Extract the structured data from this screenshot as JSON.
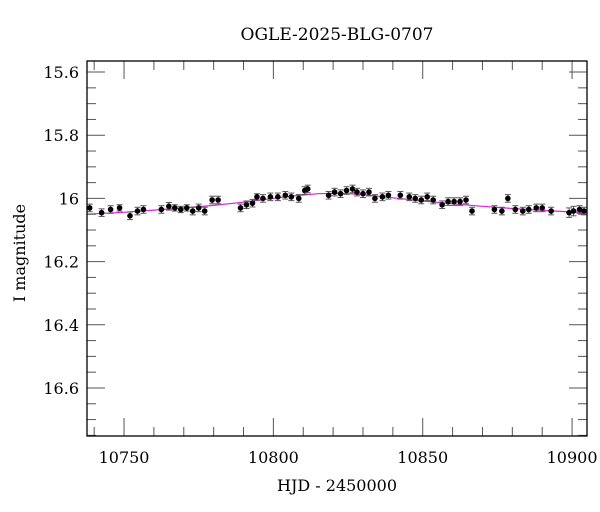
{
  "chart_data": {
    "type": "scatter",
    "title": "OGLE-2025-BLG-0707",
    "xlabel": "HJD - 2450000",
    "ylabel": "I magnitude",
    "xlim": [
      10737.6,
      10905.0
    ],
    "ylim": [
      15.565,
      16.752
    ],
    "y_inverted": true,
    "grid": false,
    "legend": null,
    "x_major_ticks": [
      10750,
      10800,
      10850,
      10900
    ],
    "x_tick_labels": [
      "10750",
      "10800",
      "10850",
      "10900"
    ],
    "x_minor_step": 10,
    "y_major_ticks": [
      15.6,
      15.8,
      16.0,
      16.2,
      16.4,
      16.6
    ],
    "y_tick_labels": [
      "15.6",
      "15.8",
      "16",
      "16.2",
      "16.4",
      "16.6"
    ],
    "y_minor_step": 0.05,
    "colors": {
      "points": "#000000",
      "errorbars": "#555555",
      "model": "#e020e0",
      "frame": "#000000"
    },
    "series": [
      {
        "name": "observations",
        "kind": "points_with_errorbars",
        "x": [
          10738.5,
          10742.5,
          10745.5,
          10748.5,
          10752.0,
          10754.5,
          10756.5,
          10762.5,
          10765.0,
          10767.0,
          10769.0,
          10771.0,
          10773.0,
          10775.0,
          10777.0,
          10779.5,
          10781.5,
          10789.0,
          10791.0,
          10793.0,
          10794.5,
          10796.5,
          10799.0,
          10801.5,
          10804.0,
          10806.0,
          10808.5,
          10810.5,
          10811.5,
          10818.5,
          10820.5,
          10822.5,
          10824.5,
          10826.5,
          10828.0,
          10830.0,
          10832.0,
          10834.0,
          10836.5,
          10838.5,
          10842.5,
          10845.5,
          10847.5,
          10849.5,
          10851.5,
          10853.5,
          10856.5,
          10858.5,
          10860.5,
          10862.5,
          10864.5,
          10866.5,
          10874.0,
          10876.5,
          10878.5,
          10881.0,
          10883.5,
          10885.5,
          10888.0,
          10890.0,
          10893.0,
          10899.0,
          10900.5,
          10902.5,
          10904.0
        ],
        "y": [
          16.03,
          16.045,
          16.035,
          16.03,
          16.055,
          16.04,
          16.035,
          16.035,
          16.025,
          16.03,
          16.035,
          16.03,
          16.04,
          16.03,
          16.04,
          16.005,
          16.005,
          16.03,
          16.02,
          16.015,
          15.995,
          16.0,
          15.995,
          15.995,
          15.99,
          15.995,
          16.0,
          15.975,
          15.97,
          15.99,
          15.98,
          15.985,
          15.975,
          15.97,
          15.98,
          15.985,
          15.98,
          16.0,
          15.995,
          15.99,
          15.99,
          15.995,
          16.0,
          16.005,
          15.995,
          16.005,
          16.02,
          16.01,
          16.01,
          16.01,
          16.005,
          16.04,
          16.035,
          16.04,
          16.0,
          16.035,
          16.04,
          16.035,
          16.03,
          16.03,
          16.04,
          16.045,
          16.04,
          16.035,
          16.04
        ],
        "err": [
          0.012,
          0.012,
          0.012,
          0.01,
          0.012,
          0.012,
          0.012,
          0.012,
          0.012,
          0.01,
          0.01,
          0.01,
          0.012,
          0.012,
          0.012,
          0.012,
          0.012,
          0.012,
          0.012,
          0.012,
          0.01,
          0.012,
          0.012,
          0.012,
          0.012,
          0.012,
          0.012,
          0.012,
          0.012,
          0.012,
          0.012,
          0.012,
          0.012,
          0.012,
          0.012,
          0.012,
          0.012,
          0.012,
          0.012,
          0.012,
          0.012,
          0.012,
          0.012,
          0.012,
          0.012,
          0.012,
          0.012,
          0.012,
          0.012,
          0.012,
          0.012,
          0.012,
          0.012,
          0.012,
          0.012,
          0.012,
          0.012,
          0.012,
          0.012,
          0.012,
          0.012,
          0.015,
          0.015,
          0.012,
          0.012
        ]
      },
      {
        "name": "model",
        "kind": "line",
        "x": [
          10737.6,
          10750,
          10760,
          10770,
          10780,
          10790,
          10800,
          10805,
          10810,
          10815,
          10820,
          10825,
          10830,
          10835,
          10840,
          10850,
          10860,
          10870,
          10880,
          10890,
          10900,
          10905
        ],
        "y": [
          16.05,
          16.044,
          16.037,
          16.03,
          16.022,
          16.012,
          16.0,
          15.994,
          15.989,
          15.985,
          15.984,
          15.985,
          15.988,
          15.993,
          15.998,
          16.008,
          16.017,
          16.025,
          16.032,
          16.038,
          16.043,
          16.045
        ]
      }
    ]
  }
}
